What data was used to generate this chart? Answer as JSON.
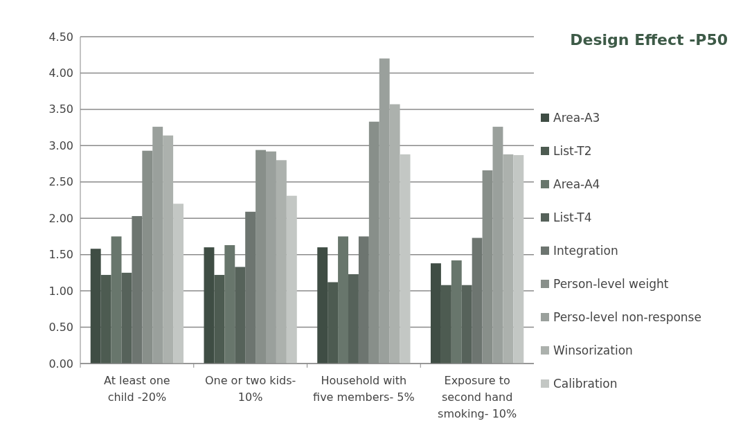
{
  "chart_data": {
    "type": "bar",
    "title": "Design Effect -P50",
    "categories": [
      "At least one child -20%",
      "One or two kids- 10%",
      "Household with five members- 5%",
      "Exposure to second hand smoking- 10%"
    ],
    "series": [
      {
        "name": "Area-A3",
        "color": "#3f4d44",
        "values": [
          1.58,
          1.6,
          1.6,
          1.38
        ]
      },
      {
        "name": "List-T2",
        "color": "#4d5b51",
        "values": [
          1.22,
          1.22,
          1.12,
          1.08
        ]
      },
      {
        "name": "Area-A4",
        "color": "#68766c",
        "values": [
          1.75,
          1.63,
          1.75,
          1.42
        ]
      },
      {
        "name": "List-T4",
        "color": "#56625a",
        "values": [
          1.25,
          1.33,
          1.23,
          1.08
        ]
      },
      {
        "name": "Integration",
        "color": "#6d7570",
        "values": [
          2.03,
          2.09,
          1.75,
          1.73
        ]
      },
      {
        "name": "Person-level weight",
        "color": "#888f8a",
        "values": [
          2.93,
          2.94,
          3.33,
          2.66
        ]
      },
      {
        "name": "Perso-level non-response",
        "color": "#9aa09c",
        "values": [
          3.26,
          2.92,
          4.2,
          3.26
        ]
      },
      {
        "name": "Winsorization",
        "color": "#acb1ad",
        "values": [
          3.14,
          2.8,
          3.57,
          2.88
        ]
      },
      {
        "name": "Calibration",
        "color": "#c3c7c4",
        "values": [
          2.2,
          2.31,
          2.88,
          2.87
        ]
      }
    ],
    "ylim": [
      0,
      4.5
    ],
    "yticks": [
      {
        "value": 0,
        "label": "0.00"
      },
      {
        "value": 0.5,
        "label": "0.50"
      },
      {
        "value": 1,
        "label": "1.00"
      },
      {
        "value": 1.5,
        "label": "1.50"
      },
      {
        "value": 2,
        "label": "2.00"
      },
      {
        "value": 2.5,
        "label": "2.50"
      },
      {
        "value": 3,
        "label": "3.00"
      },
      {
        "value": 3.5,
        "label": "3.50"
      },
      {
        "value": 4,
        "label": "4.00"
      },
      {
        "value": 4.5,
        "label": "4.50"
      }
    ],
    "grid": "y",
    "legend": "right"
  }
}
